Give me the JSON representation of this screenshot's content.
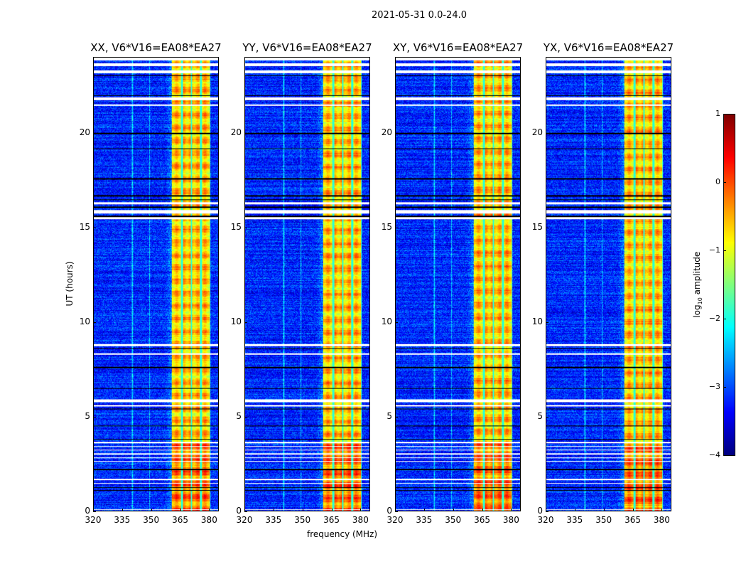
{
  "chart_data": {
    "type": "heatmap",
    "title": "2021-05-31 0.0-24.0",
    "xlabel": "frequency (MHz)",
    "ylabel": "UT (hours)",
    "xlim": [
      320,
      385
    ],
    "ylim": [
      0,
      24
    ],
    "xticks": [
      320,
      335,
      350,
      365,
      380
    ],
    "yticks": [
      0,
      5,
      10,
      15,
      20
    ],
    "colorbar": {
      "label": "log10 amplitude",
      "label_main": "log",
      "label_sub": "10",
      "label_rest": " amplitude",
      "range": [
        -4,
        1
      ],
      "ticks": [
        1,
        0,
        -1,
        -2,
        -3,
        -4
      ],
      "tick_labels": [
        "1",
        "0",
        "−1",
        "−2",
        "−3",
        "−4"
      ],
      "colormap": "jet"
    },
    "panels": [
      {
        "title": "XX, V6*V16=EA08*EA27",
        "seed": 11
      },
      {
        "title": "YY, V6*V16=EA08*EA27",
        "seed": 23
      },
      {
        "title": "XY, V6*V16=EA08*EA27",
        "seed": 37
      },
      {
        "title": "YX, V6*V16=EA08*EA27",
        "seed": 41
      }
    ],
    "background_level": -3.2,
    "rfi_band_mhz": [
      360.7,
      380.8
    ],
    "rfi_level": -0.6,
    "rfi_gap_channels_mhz": [
      365.8,
      370.9,
      375.7,
      380.8
    ],
    "flagged_time_ranges_hours": [
      [
        23.85,
        24
      ],
      [
        23.55,
        23.7
      ],
      [
        23.2,
        23.35
      ],
      [
        21.75,
        21.9
      ],
      [
        21.45,
        21.55
      ],
      [
        16.25,
        16.35
      ],
      [
        15.75,
        15.95
      ],
      [
        15.45,
        15.55
      ],
      [
        8.75,
        8.85
      ],
      [
        8.3,
        8.35
      ],
      [
        5.75,
        5.9
      ],
      [
        5.55,
        5.62
      ],
      [
        3.6,
        3.65
      ],
      [
        3.4,
        3.45
      ],
      [
        3.2,
        3.25
      ],
      [
        3.0,
        3.05
      ],
      [
        2.8,
        2.85
      ],
      [
        2.6,
        2.65
      ],
      [
        1.65,
        1.72
      ],
      [
        1.45,
        1.5
      ],
      [
        0.05,
        0.1
      ]
    ],
    "black_line_times_hours": [
      23.05,
      22.0,
      20.0,
      19.2,
      17.6,
      16.7,
      16.5,
      16.1,
      15.6,
      8.6,
      7.6,
      6.5,
      5.4,
      4.5,
      3.8,
      2.2,
      1.25,
      1.1
    ]
  }
}
